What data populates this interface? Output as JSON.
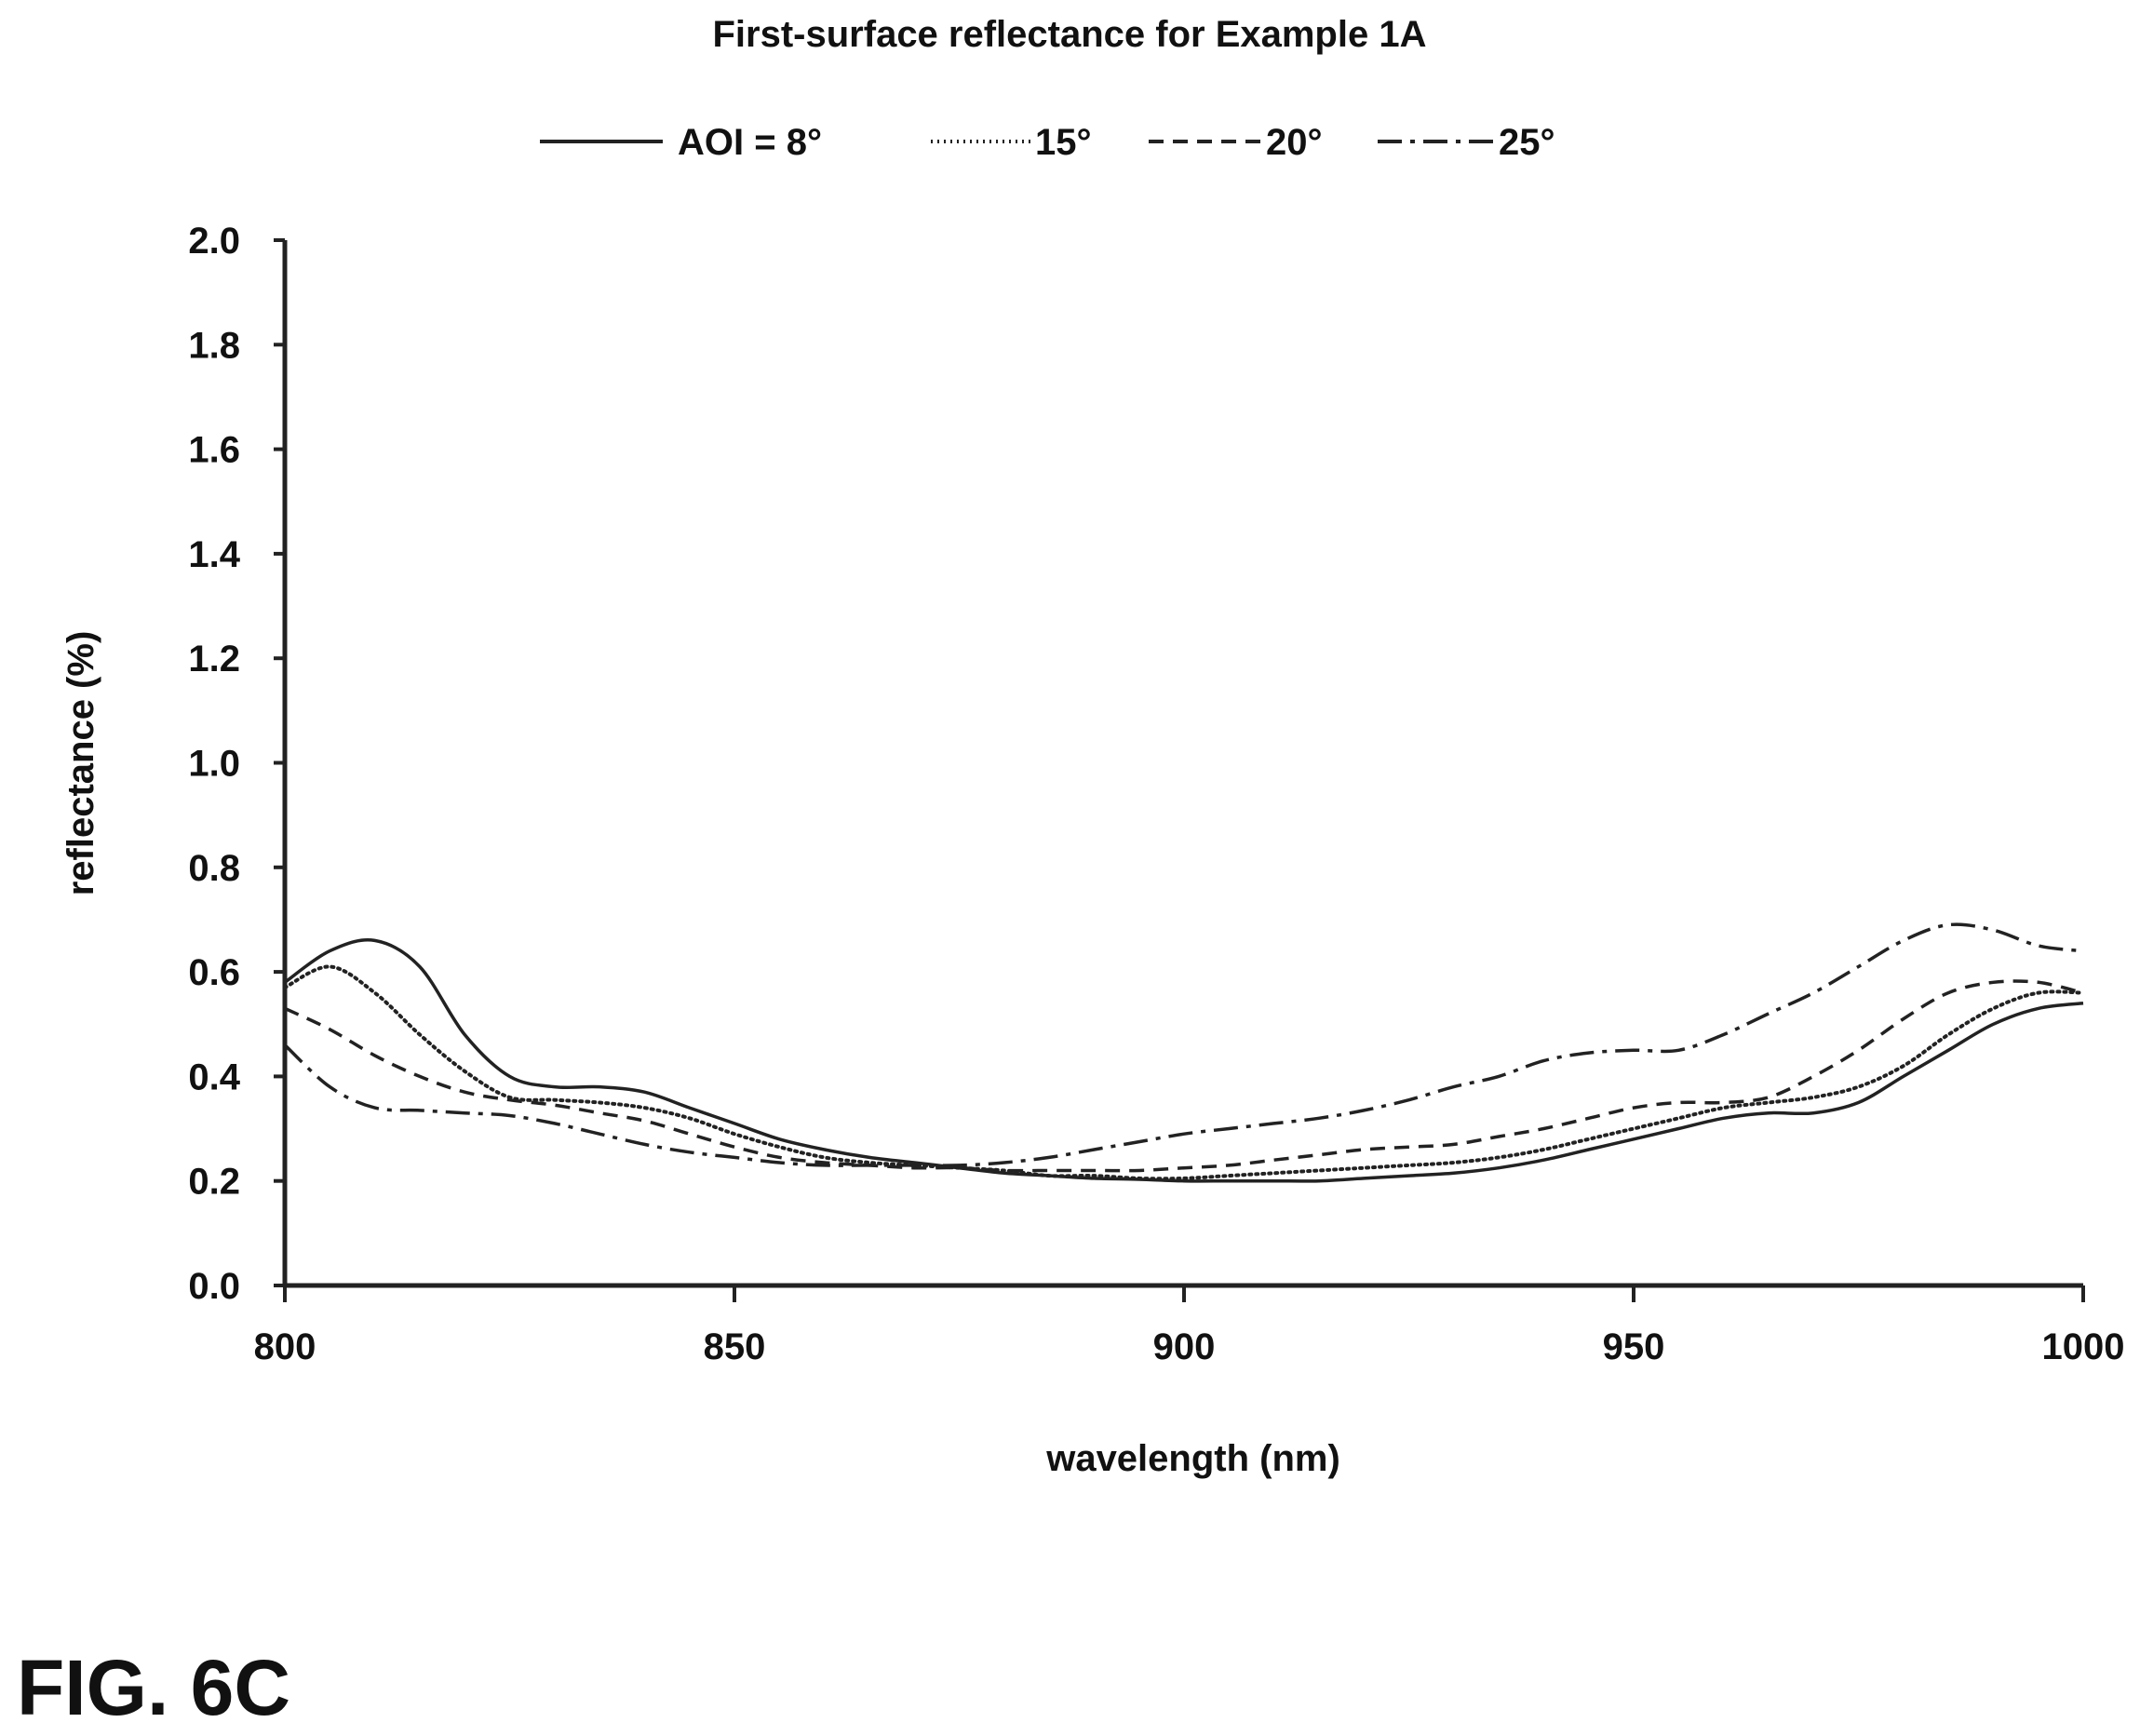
{
  "figure_label": "FIG. 6C",
  "chart_data": {
    "type": "line",
    "title": "First-surface reflectance for Example 1A",
    "xlabel": "wavelength (nm)",
    "ylabel": "reflectance (%)",
    "xlim": [
      800,
      1000
    ],
    "ylim": [
      0.0,
      2.0
    ],
    "xticks": [
      800,
      850,
      900,
      950,
      1000
    ],
    "xtick_labels": [
      "800",
      "850",
      "900",
      "950",
      "1000"
    ],
    "yticks": [
      0.0,
      0.2,
      0.4,
      0.6,
      0.8,
      1.0,
      1.2,
      1.4,
      1.6,
      1.8,
      2.0
    ],
    "ytick_labels": [
      "0.0",
      "0.2",
      "0.4",
      "0.6",
      "0.8",
      "1.0",
      "1.2",
      "1.4",
      "1.6",
      "1.8",
      "2.0"
    ],
    "grid": false,
    "legend_position": "top",
    "x": [
      800,
      805,
      810,
      815,
      820,
      825,
      830,
      835,
      840,
      845,
      850,
      855,
      860,
      865,
      870,
      875,
      880,
      885,
      890,
      895,
      900,
      905,
      910,
      915,
      920,
      925,
      930,
      935,
      940,
      945,
      950,
      955,
      960,
      965,
      970,
      975,
      980,
      985,
      990,
      995,
      1000
    ],
    "series": [
      {
        "name": "AOI = 8°",
        "style": "solid",
        "color": "#222222",
        "values": [
          0.58,
          0.64,
          0.66,
          0.61,
          0.48,
          0.4,
          0.38,
          0.38,
          0.37,
          0.34,
          0.31,
          0.28,
          0.26,
          0.245,
          0.235,
          0.225,
          0.215,
          0.21,
          0.205,
          0.203,
          0.2,
          0.2,
          0.2,
          0.2,
          0.205,
          0.21,
          0.215,
          0.225,
          0.24,
          0.26,
          0.28,
          0.3,
          0.32,
          0.33,
          0.33,
          0.35,
          0.4,
          0.45,
          0.5,
          0.53,
          0.54
        ]
      },
      {
        "name": "15°",
        "style": "dotted",
        "color": "#222222",
        "values": [
          0.57,
          0.61,
          0.56,
          0.48,
          0.41,
          0.36,
          0.355,
          0.35,
          0.34,
          0.32,
          0.29,
          0.265,
          0.245,
          0.235,
          0.23,
          0.225,
          0.22,
          0.21,
          0.21,
          0.205,
          0.205,
          0.21,
          0.215,
          0.22,
          0.225,
          0.23,
          0.235,
          0.245,
          0.26,
          0.28,
          0.3,
          0.32,
          0.34,
          0.35,
          0.36,
          0.38,
          0.42,
          0.48,
          0.53,
          0.56,
          0.56
        ]
      },
      {
        "name": "20°",
        "style": "dashed",
        "color": "#222222",
        "values": [
          0.53,
          0.49,
          0.44,
          0.4,
          0.37,
          0.355,
          0.345,
          0.33,
          0.315,
          0.29,
          0.265,
          0.245,
          0.235,
          0.23,
          0.225,
          0.225,
          0.22,
          0.22,
          0.22,
          0.22,
          0.225,
          0.23,
          0.24,
          0.25,
          0.26,
          0.265,
          0.27,
          0.285,
          0.3,
          0.32,
          0.34,
          0.35,
          0.35,
          0.36,
          0.4,
          0.45,
          0.51,
          0.56,
          0.58,
          0.58,
          0.56
        ]
      },
      {
        "name": "25°",
        "style": "dashdot",
        "color": "#222222",
        "values": [
          0.46,
          0.38,
          0.34,
          0.335,
          0.33,
          0.325,
          0.31,
          0.29,
          0.27,
          0.255,
          0.245,
          0.235,
          0.23,
          0.23,
          0.23,
          0.23,
          0.235,
          0.245,
          0.26,
          0.275,
          0.29,
          0.3,
          0.31,
          0.32,
          0.335,
          0.355,
          0.38,
          0.4,
          0.43,
          0.445,
          0.45,
          0.45,
          0.48,
          0.52,
          0.56,
          0.61,
          0.66,
          0.69,
          0.68,
          0.65,
          0.64
        ]
      }
    ]
  }
}
